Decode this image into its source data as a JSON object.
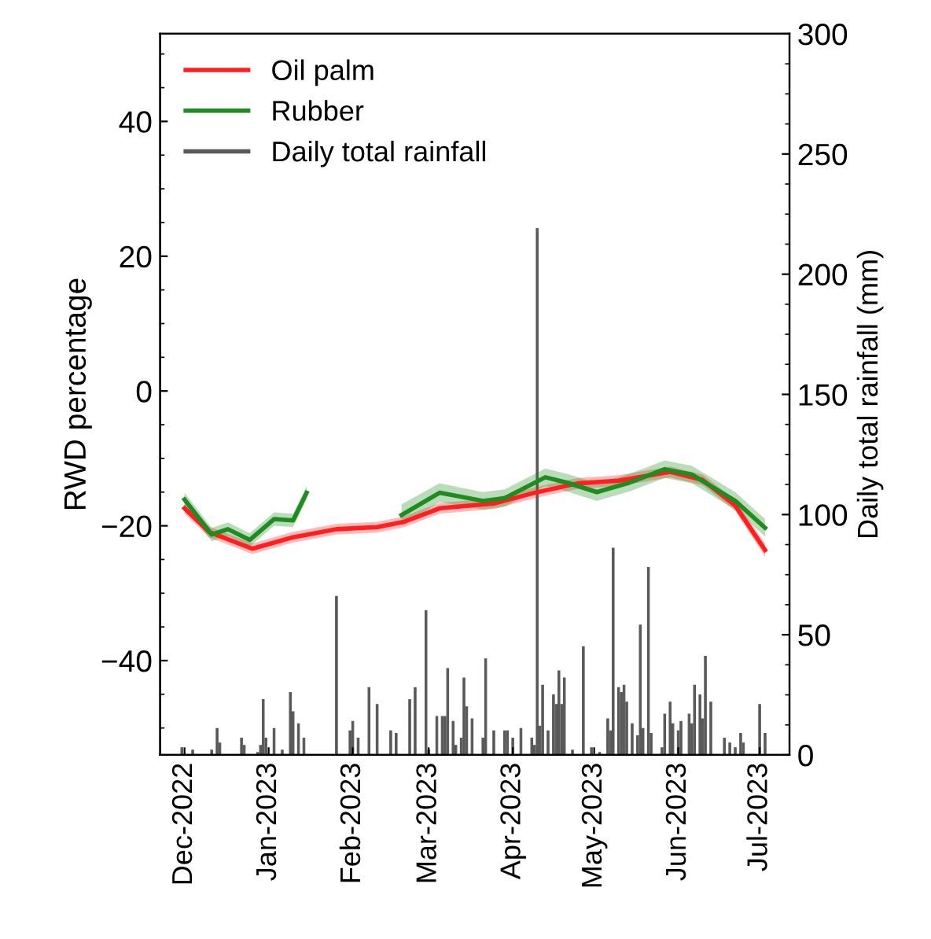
{
  "chart_data": {
    "type": "line",
    "ylabel": "RWD percentage",
    "y2label": "Daily total rainfall (mm)",
    "xlim": [
      "2022-11-22",
      "2023-07-12"
    ],
    "xticks": [
      {
        "value": "2022-12-01",
        "label": "Dec-2022"
      },
      {
        "value": "2023-01-01",
        "label": "Jan-2023"
      },
      {
        "value": "2023-02-01",
        "label": "Feb-2023"
      },
      {
        "value": "2023-03-01",
        "label": "Mar-2023"
      },
      {
        "value": "2023-04-01",
        "label": "Apr-2023"
      },
      {
        "value": "2023-05-01",
        "label": "May-2023"
      },
      {
        "value": "2023-06-01",
        "label": "Jun-2023"
      },
      {
        "value": "2023-07-01",
        "label": "Jul-2023"
      }
    ],
    "ylim": [
      -54,
      53
    ],
    "yticks": [
      {
        "value": -40,
        "label": "−40"
      },
      {
        "value": -20,
        "label": "−20"
      },
      0,
      20,
      40
    ],
    "y2lim": [
      0,
      300
    ],
    "y2ticks": [
      0,
      50,
      100,
      150,
      200,
      250,
      300
    ],
    "legend": "top left",
    "grid": false,
    "series": [
      {
        "name": "Oil palm",
        "color": "#ff1f1f",
        "x": [
          "2022-12-01",
          "2022-12-10",
          "2022-12-26",
          "2023-01-10",
          "2023-01-26",
          "2023-02-10",
          "2023-02-20",
          "2023-03-05",
          "2023-03-25",
          "2023-04-09",
          "2023-04-25",
          "2023-05-10",
          "2023-05-29",
          "2023-06-10",
          "2023-06-22",
          "2023-07-03"
        ],
        "values": [
          -17.4,
          -20.9,
          -23.4,
          -21.7,
          -20.5,
          -20.2,
          -19.4,
          -17.4,
          -16.7,
          -15.1,
          -13.7,
          -13.3,
          -12.0,
          -13.2,
          -17.0,
          -23.6
        ],
        "lower": [
          -18.2,
          -21.7,
          -24.2,
          -22.5,
          -21.3,
          -21.0,
          -20.2,
          -18.2,
          -17.5,
          -15.9,
          -14.5,
          -14.1,
          -12.8,
          -14.0,
          -17.8,
          -24.6
        ],
        "upper": [
          -16.6,
          -20.1,
          -22.6,
          -20.9,
          -19.7,
          -19.4,
          -18.6,
          -16.6,
          -15.9,
          -14.3,
          -12.9,
          -12.5,
          -11.2,
          -12.4,
          -16.2,
          -22.6
        ]
      },
      {
        "name": "Rubber",
        "color": "#1f8c1f",
        "x": [
          "2022-12-01",
          "2022-12-11",
          "2022-12-17",
          "2022-12-25",
          "2023-01-03",
          "2023-01-10",
          "2023-01-15",
          "2023-01-30",
          "2023-02-19",
          "2023-03-05",
          "2023-03-21",
          "2023-03-29",
          "2023-04-13",
          "2023-04-21",
          "2023-05-02",
          "2023-05-14",
          "2023-05-27",
          "2023-06-06",
          "2023-06-22",
          "2023-07-03"
        ],
        "values": [
          -16.1,
          -21.3,
          -20.5,
          -22.1,
          -19.0,
          -19.2,
          -15.1,
          null,
          -18.4,
          -15.1,
          -16.3,
          -15.9,
          -12.8,
          -13.6,
          -15.0,
          -13.6,
          -11.6,
          -12.4,
          -16.3,
          -20.3
        ],
        "lower": [
          -17.1,
          -22.3,
          -21.5,
          -23.1,
          -20.0,
          -20.2,
          -16.1,
          null,
          -20.0,
          -16.5,
          -17.6,
          -17.2,
          -14.1,
          -14.9,
          -16.3,
          -14.9,
          -12.9,
          -13.7,
          -17.6,
          -21.6
        ],
        "upper": [
          -15.1,
          -20.3,
          -19.5,
          -21.1,
          -18.0,
          -18.2,
          -14.1,
          null,
          -16.8,
          -13.7,
          -15.0,
          -14.6,
          -11.5,
          -12.3,
          -13.7,
          -12.3,
          -10.3,
          -11.1,
          -15.0,
          -19.0
        ]
      },
      {
        "name": "Daily total rainfall",
        "type": "bar",
        "axis": "y2",
        "color": "#595959",
        "x": [
          "2022-11-30",
          "2022-12-04",
          "2022-12-11",
          "2022-12-13",
          "2022-12-14",
          "2022-12-22",
          "2022-12-23",
          "2022-12-28",
          "2022-12-29",
          "2022-12-30",
          "2022-12-31",
          "2023-01-03",
          "2023-01-06",
          "2023-01-09",
          "2023-01-10",
          "2023-01-12",
          "2023-01-14",
          "2023-01-26",
          "2023-01-31",
          "2023-02-01",
          "2023-02-03",
          "2023-02-07",
          "2023-02-10",
          "2023-02-15",
          "2023-02-17",
          "2023-02-22",
          "2023-02-24",
          "2023-02-28",
          "2023-03-01",
          "2023-03-04",
          "2023-03-06",
          "2023-03-07",
          "2023-03-08",
          "2023-03-10",
          "2023-03-11",
          "2023-03-13",
          "2023-03-14",
          "2023-03-15",
          "2023-03-17",
          "2023-03-21",
          "2023-03-22",
          "2023-03-25",
          "2023-03-29",
          "2023-03-30",
          "2023-04-01",
          "2023-04-04",
          "2023-04-08",
          "2023-04-09",
          "2023-04-10",
          "2023-04-11",
          "2023-04-12",
          "2023-04-14",
          "2023-04-16",
          "2023-04-17",
          "2023-04-18",
          "2023-04-19",
          "2023-04-20",
          "2023-04-23",
          "2023-04-27",
          "2023-04-30",
          "2023-05-03",
          "2023-05-06",
          "2023-05-07",
          "2023-05-08",
          "2023-05-10",
          "2023-05-11",
          "2023-05-12",
          "2023-05-13",
          "2023-05-15",
          "2023-05-17",
          "2023-05-18",
          "2023-05-19",
          "2023-05-21",
          "2023-05-22",
          "2023-05-26",
          "2023-05-27",
          "2023-05-29",
          "2023-05-30",
          "2023-06-01",
          "2023-06-02",
          "2023-06-05",
          "2023-06-06",
          "2023-06-07",
          "2023-06-09",
          "2023-06-10",
          "2023-06-11",
          "2023-06-13",
          "2023-06-18",
          "2023-06-20",
          "2023-06-22",
          "2023-06-24",
          "2023-06-25",
          "2023-07-01",
          "2023-07-03"
        ],
        "values": [
          3,
          2,
          2,
          11,
          5,
          7,
          4,
          1,
          4,
          23,
          7,
          11,
          2,
          26,
          18,
          13,
          7,
          66,
          10,
          14,
          7,
          28,
          21,
          10,
          9,
          23,
          28,
          60,
          2,
          16,
          16,
          16,
          36,
          14,
          4,
          7,
          32,
          20,
          15,
          7,
          40,
          10,
          10,
          10,
          7,
          11,
          7,
          4,
          219,
          12,
          29,
          10,
          25,
          21,
          35,
          21,
          32,
          2,
          45,
          3,
          1,
          15,
          10,
          86,
          28,
          26,
          29,
          22,
          13,
          8,
          54,
          11,
          78,
          9,
          3,
          17,
          22,
          13,
          10,
          14,
          17,
          13,
          29,
          25,
          15,
          41,
          22,
          7,
          5,
          3,
          9,
          5,
          21,
          9
        ]
      }
    ]
  }
}
